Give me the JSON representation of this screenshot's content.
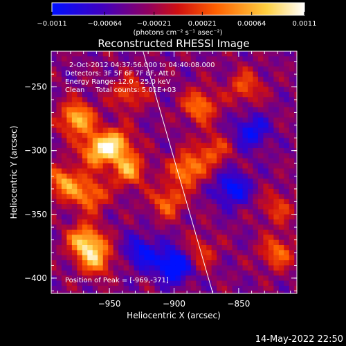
{
  "chart_data": {
    "type": "heatmap",
    "title": "Reconstructed RHESSI Image",
    "xlabel": "Heliocentric X (arcsec)",
    "ylabel": "Heliocentric Y (arcsec)",
    "xlim": [
      -995,
      -805
    ],
    "ylim": [
      -412,
      -222
    ],
    "x_ticks": [
      -950,
      -900,
      -850
    ],
    "x_tick_labels": [
      "−950",
      "−900",
      "−850"
    ],
    "y_ticks": [
      -250,
      -300,
      -350,
      -400
    ],
    "y_tick_labels": [
      "−250",
      "−300",
      "−350",
      "−400"
    ],
    "colorbar": {
      "range": [
        -0.0011,
        0.0011
      ],
      "ticks": [
        -0.0011,
        -0.00064,
        -0.00021,
        0.00021,
        0.00064,
        0.0011
      ],
      "tick_labels": [
        "−0.0011",
        "−0.00064",
        "−0.00021",
        "0.00021",
        "0.00064",
        "0.0011"
      ],
      "units": "(photons cm⁻² s⁻¹ asec⁻²)",
      "colors": [
        "#0010ff",
        "#5a00a8",
        "#a00040",
        "#e02000",
        "#ff8000",
        "#ffff80",
        "#ffffff"
      ]
    },
    "annotations": [
      "2-Oct-2012 04:37:56.000 to 04:40:08.000",
      "Detectors: 3F 5F 6F 7F 8F, Att 0",
      "Energy Range: 12.0 - 25.0 keV",
      "Clean     Total counts: 5.01E+03"
    ],
    "peak_label": "Position of Peak = [-969,-371]",
    "peak_position": [
      -969,
      -371
    ],
    "limb_line": [
      [
        -924,
        -222
      ],
      [
        -870,
        -412
      ]
    ],
    "bright_regions": [
      {
        "x": -975,
        "y": -275,
        "intensity": 0.0011
      },
      {
        "x": -960,
        "y": -300,
        "intensity": 0.001
      },
      {
        "x": -945,
        "y": -295,
        "intensity": 0.001
      },
      {
        "x": -935,
        "y": -315,
        "intensity": 0.0009
      },
      {
        "x": -985,
        "y": -325,
        "intensity": 0.0009
      },
      {
        "x": -965,
        "y": -335,
        "intensity": 0.0008
      },
      {
        "x": -969,
        "y": -371,
        "intensity": 0.0011
      },
      {
        "x": -960,
        "y": -385,
        "intensity": 0.0009
      },
      {
        "x": -890,
        "y": -315,
        "intensity": 0.0009
      },
      {
        "x": -905,
        "y": -340,
        "intensity": 0.0007
      },
      {
        "x": -880,
        "y": -265,
        "intensity": 0.0008
      },
      {
        "x": -870,
        "y": -300,
        "intensity": 0.0006
      },
      {
        "x": -845,
        "y": -250,
        "intensity": 0.0006
      },
      {
        "x": -820,
        "y": -345,
        "intensity": 0.0005
      },
      {
        "x": -820,
        "y": -380,
        "intensity": 0.0007
      },
      {
        "x": -880,
        "y": -380,
        "intensity": 0.0005
      },
      {
        "x": -935,
        "y": -255,
        "intensity": 0.0006
      }
    ],
    "dark_regions": [
      {
        "x": -900,
        "y": -390,
        "intensity": -0.0011
      },
      {
        "x": -855,
        "y": -330,
        "intensity": -0.0008
      },
      {
        "x": -840,
        "y": -285,
        "intensity": -0.0007
      },
      {
        "x": -925,
        "y": -380,
        "intensity": -0.0007
      }
    ]
  },
  "footer_timestamp": "14-May-2022 22:50"
}
